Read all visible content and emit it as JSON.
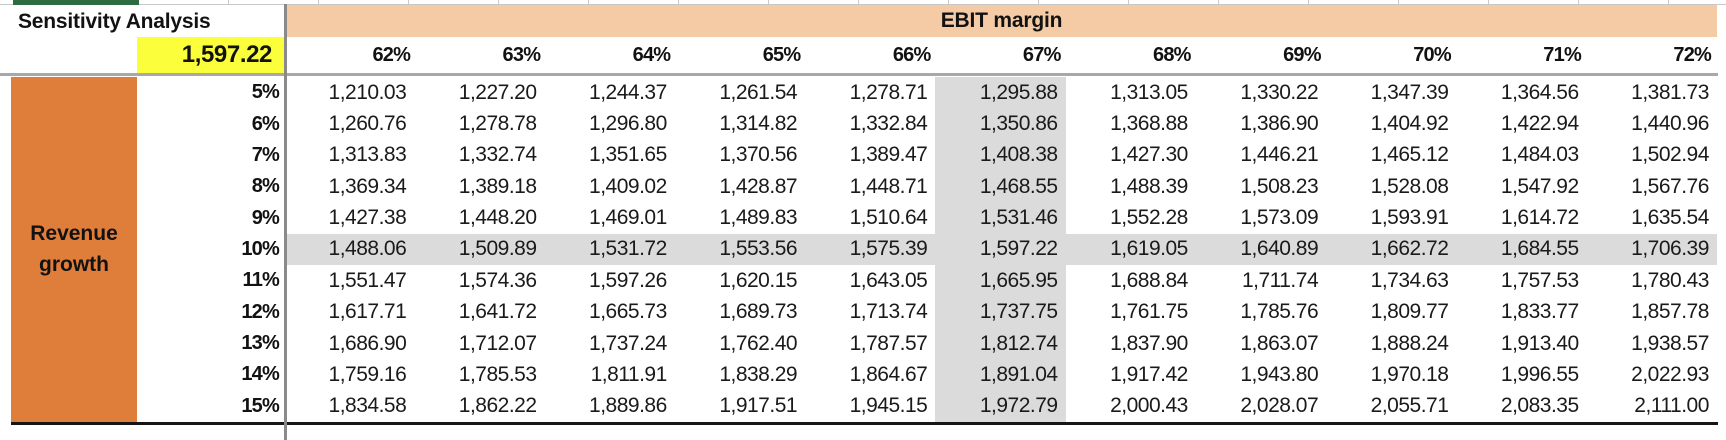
{
  "sensitivity_table": {
    "title": "Sensitivity Analysis",
    "base_value": "1,597.22",
    "column_axis_label": "EBIT margin",
    "row_axis_label": "Revenue growth",
    "column_headers": [
      "62%",
      "63%",
      "64%",
      "65%",
      "66%",
      "67%",
      "68%",
      "69%",
      "70%",
      "71%",
      "72%"
    ],
    "row_headers": [
      "5%",
      "6%",
      "7%",
      "8%",
      "9%",
      "10%",
      "11%",
      "12%",
      "13%",
      "14%",
      "15%"
    ],
    "values": [
      [
        "1,210.03",
        "1,227.20",
        "1,244.37",
        "1,261.54",
        "1,278.71",
        "1,295.88",
        "1,313.05",
        "1,330.22",
        "1,347.39",
        "1,364.56",
        "1,381.73"
      ],
      [
        "1,260.76",
        "1,278.78",
        "1,296.80",
        "1,314.82",
        "1,332.84",
        "1,350.86",
        "1,368.88",
        "1,386.90",
        "1,404.92",
        "1,422.94",
        "1,440.96"
      ],
      [
        "1,313.83",
        "1,332.74",
        "1,351.65",
        "1,370.56",
        "1,389.47",
        "1,408.38",
        "1,427.30",
        "1,446.21",
        "1,465.12",
        "1,484.03",
        "1,502.94"
      ],
      [
        "1,369.34",
        "1,389.18",
        "1,409.02",
        "1,428.87",
        "1,448.71",
        "1,468.55",
        "1,488.39",
        "1,508.23",
        "1,528.08",
        "1,547.92",
        "1,567.76"
      ],
      [
        "1,427.38",
        "1,448.20",
        "1,469.01",
        "1,489.83",
        "1,510.64",
        "1,531.46",
        "1,552.28",
        "1,573.09",
        "1,593.91",
        "1,614.72",
        "1,635.54"
      ],
      [
        "1,488.06",
        "1,509.89",
        "1,531.72",
        "1,553.56",
        "1,575.39",
        "1,597.22",
        "1,619.05",
        "1,640.89",
        "1,662.72",
        "1,684.55",
        "1,706.39"
      ],
      [
        "1,551.47",
        "1,574.36",
        "1,597.26",
        "1,620.15",
        "1,643.05",
        "1,665.95",
        "1,688.84",
        "1,711.74",
        "1,734.63",
        "1,757.53",
        "1,780.43"
      ],
      [
        "1,617.71",
        "1,641.72",
        "1,665.73",
        "1,689.73",
        "1,713.74",
        "1,737.75",
        "1,761.75",
        "1,785.76",
        "1,809.77",
        "1,833.77",
        "1,857.78"
      ],
      [
        "1,686.90",
        "1,712.07",
        "1,737.24",
        "1,762.40",
        "1,787.57",
        "1,812.74",
        "1,837.90",
        "1,863.07",
        "1,888.24",
        "1,913.40",
        "1,938.57"
      ],
      [
        "1,759.16",
        "1,785.53",
        "1,811.91",
        "1,838.29",
        "1,864.67",
        "1,891.04",
        "1,917.42",
        "1,943.80",
        "1,970.18",
        "1,996.55",
        "2,022.93"
      ],
      [
        "1,834.58",
        "1,862.22",
        "1,889.86",
        "1,917.51",
        "1,945.15",
        "1,972.79",
        "2,000.43",
        "2,028.07",
        "2,055.71",
        "2,083.35",
        "2,111.00"
      ]
    ],
    "highlighted_row": "10%",
    "highlighted_column": "67%",
    "highlighted_row_index": 5,
    "highlighted_column_index": 5
  },
  "colors": {
    "band_peach": "#F5CBA6",
    "axis_orange": "#DF7D3B",
    "base_yellow": "#FBFF3B",
    "highlight_gray": "#DBDBDB",
    "accent_green": "#2E6B41"
  }
}
